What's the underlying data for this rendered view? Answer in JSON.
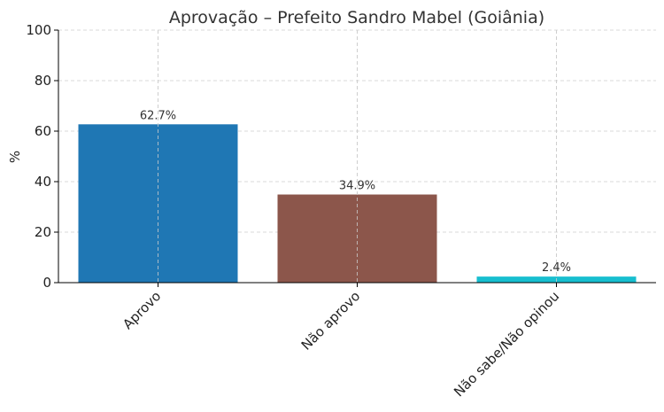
{
  "chart_data": {
    "type": "bar",
    "title": "Aprovação – Prefeito Sandro Mabel (Goiânia)",
    "xlabel": "",
    "ylabel": "%",
    "ylim": [
      0,
      100
    ],
    "yticks": [
      0,
      20,
      40,
      60,
      80,
      100
    ],
    "grid": true,
    "categories": [
      "Aprovo",
      "Não aprovo",
      "Não sabe/Não opinou"
    ],
    "values": [
      62.7,
      34.9,
      2.4
    ],
    "data_labels": [
      "62.7%",
      "34.9%",
      "2.4%"
    ],
    "colors": [
      "#1f77b4",
      "#8c564b",
      "#17becf"
    ]
  }
}
